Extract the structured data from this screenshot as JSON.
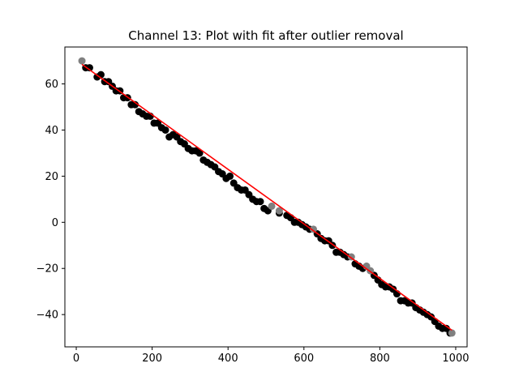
{
  "chart_data": {
    "type": "scatter",
    "title": "Channel 13: Plot with fit after outlier removal",
    "xlabel": "",
    "ylabel": "",
    "xlim": [
      -30,
      1030
    ],
    "ylim": [
      -54,
      76
    ],
    "xticks": [
      0,
      200,
      400,
      600,
      800,
      1000
    ],
    "yticks": [
      -40,
      -20,
      0,
      20,
      40,
      60
    ],
    "grid": false,
    "series": [
      {
        "role": "kept",
        "color": "#000000",
        "x": [
          25,
          35,
          55,
          65,
          75,
          85,
          95,
          105,
          115,
          125,
          135,
          145,
          155,
          165,
          175,
          185,
          195,
          205,
          215,
          225,
          235,
          245,
          255,
          265,
          275,
          285,
          295,
          305,
          315,
          325,
          335,
          345,
          355,
          365,
          375,
          385,
          395,
          405,
          415,
          425,
          435,
          445,
          455,
          465,
          475,
          485,
          495,
          505,
          535,
          555,
          565,
          575,
          585,
          595,
          605,
          615,
          635,
          645,
          655,
          665,
          675,
          685,
          695,
          705,
          715,
          735,
          745,
          755,
          785,
          795,
          805,
          815,
          825,
          835,
          845,
          855,
          865,
          875,
          885,
          895,
          905,
          915,
          925,
          935,
          945,
          955,
          965,
          975,
          985
        ],
        "y": [
          67,
          67,
          63,
          64,
          61,
          61,
          59,
          57,
          57,
          54,
          54,
          51,
          51,
          48,
          47,
          46,
          46,
          43,
          43,
          41,
          40,
          37,
          38,
          37,
          35,
          34,
          32,
          31,
          31,
          30,
          27,
          26,
          25,
          24,
          22,
          21,
          19,
          20,
          17,
          15,
          14,
          14,
          12,
          10,
          9,
          9,
          6,
          5,
          4,
          3,
          2,
          0,
          0,
          -1,
          -2,
          -3,
          -5,
          -7,
          -8,
          -8,
          -10,
          -13,
          -13,
          -14,
          -15,
          -18,
          -19,
          -20,
          -23,
          -25,
          -27,
          -28,
          -28,
          -29,
          -31,
          -34,
          -34,
          -35,
          -35,
          -37,
          -38,
          -39,
          -40,
          -41,
          -43,
          -45,
          -46,
          -46,
          -48
        ]
      },
      {
        "role": "outliers",
        "color": "#808080",
        "x": [
          15,
          515,
          535,
          625,
          725,
          765,
          775,
          990
        ],
        "y": [
          70,
          7,
          5,
          -3,
          -15,
          -19,
          -21,
          -48
        ]
      }
    ],
    "fit_line": {
      "color": "#ff0000",
      "x": [
        15,
        990
      ],
      "y": [
        68.5,
        -46.8
      ]
    }
  }
}
